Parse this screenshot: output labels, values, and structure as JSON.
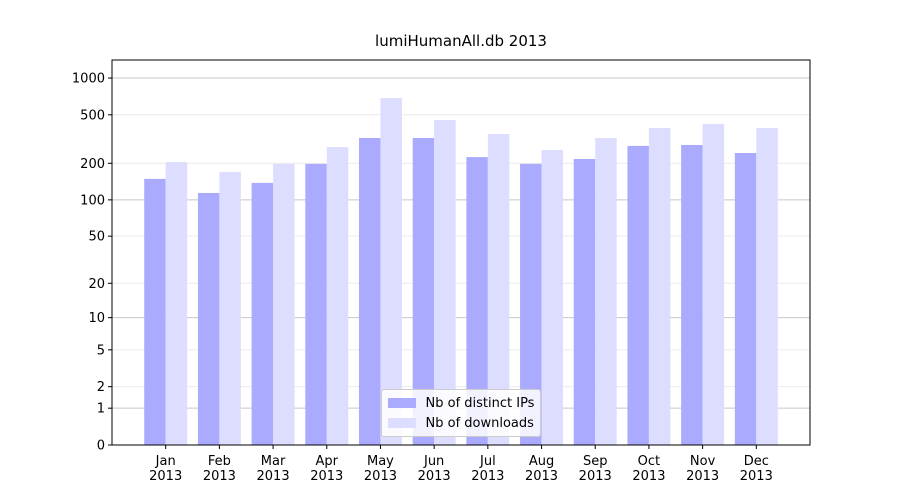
{
  "chart_data": {
    "type": "bar",
    "title": "lumiHumanAll.db 2013",
    "categories": [
      "Jan\n2013",
      "Feb\n2013",
      "Mar\n2013",
      "Apr\n2013",
      "May\n2013",
      "Jun\n2013",
      "Jul\n2013",
      "Aug\n2013",
      "Sep\n2013",
      "Oct\n2013",
      "Nov\n2013",
      "Dec\n2013"
    ],
    "series": [
      {
        "name": "Nb of distinct IPs",
        "color": "#aaaaff",
        "values": [
          149,
          114,
          138,
          198,
          323,
          323,
          225,
          198,
          217,
          278,
          283,
          243
        ]
      },
      {
        "name": "Nb of downloads",
        "color": "#ddddff",
        "values": [
          205,
          170,
          198,
          272,
          686,
          453,
          348,
          257,
          323,
          390,
          421,
          390
        ]
      }
    ],
    "scale": "log1p",
    "ylim": [
      0,
      1405
    ],
    "yticks": [
      0,
      1,
      2,
      5,
      10,
      20,
      50,
      100,
      200,
      500,
      1000
    ],
    "grid": true,
    "legend": "lower center"
  }
}
